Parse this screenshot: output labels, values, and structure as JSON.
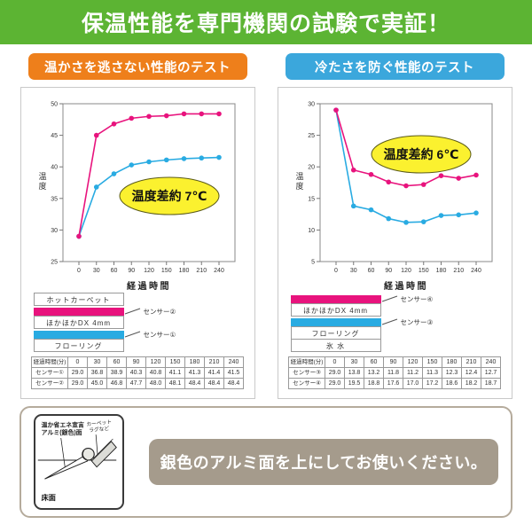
{
  "banner": {
    "title": "保温性能を専門機関の試験で実証！"
  },
  "colors": {
    "banner_green": "#5CB433",
    "warm_accent": "#EE7F1B",
    "cold_accent": "#3BA7DC",
    "line_pink": "#E8137D",
    "line_blue": "#29ABE2",
    "annotation_yellow": "#FBF12F",
    "message_gray": "#A59B8C"
  },
  "panels": [
    {
      "header": "温かさを逃さない性能のテスト",
      "legend": {
        "layers": [
          {
            "kind": "box",
            "text": "ホットカーペット"
          },
          {
            "kind": "bar",
            "color": "#E8137D",
            "sensor": "センサー②"
          },
          {
            "kind": "box",
            "text": "ほかほかDX 4mm"
          },
          {
            "kind": "bar",
            "color": "#29ABE2",
            "sensor": "センサー①"
          },
          {
            "kind": "box",
            "text": "フローリング"
          }
        ]
      },
      "table": {
        "header": [
          "経過時間(分)",
          "0",
          "30",
          "60",
          "90",
          "120",
          "150",
          "180",
          "210",
          "240"
        ],
        "rows": [
          [
            "センサー①",
            "29.0",
            "36.8",
            "38.9",
            "40.3",
            "40.8",
            "41.1",
            "41.3",
            "41.4",
            "41.5"
          ],
          [
            "センサー②",
            "29.0",
            "45.0",
            "46.8",
            "47.7",
            "48.0",
            "48.1",
            "48.4",
            "48.4",
            "48.4"
          ]
        ]
      }
    },
    {
      "header": "冷たさを防ぐ性能のテスト",
      "legend": {
        "layers": [
          {
            "kind": "bar",
            "color": "#E8137D",
            "sensor": "センサー④"
          },
          {
            "kind": "box",
            "text": "ほかほかDX 4mm"
          },
          {
            "kind": "bar",
            "color": "#29ABE2",
            "sensor": "センサー③"
          },
          {
            "kind": "box",
            "text": "フローリング"
          },
          {
            "kind": "box",
            "text": "氷 水"
          }
        ]
      },
      "table": {
        "header": [
          "経過時間(分)",
          "0",
          "30",
          "60",
          "90",
          "120",
          "150",
          "180",
          "210",
          "240"
        ],
        "rows": [
          [
            "センサー③",
            "29.0",
            "13.8",
            "13.2",
            "11.8",
            "11.2",
            "11.3",
            "12.3",
            "12.4",
            "12.7"
          ],
          [
            "センサー④",
            "29.0",
            "19.5",
            "18.8",
            "17.6",
            "17.0",
            "17.2",
            "18.6",
            "18.2",
            "18.7"
          ]
        ]
      }
    }
  ],
  "chart_data": [
    {
      "type": "line",
      "title": "温かさを逃さない性能のテスト",
      "x": [
        0,
        30,
        60,
        90,
        120,
        150,
        180,
        210,
        240
      ],
      "xlabel": "経過時間",
      "ylabel": "温度",
      "ylim": [
        25,
        50
      ],
      "yticks": [
        25,
        30,
        35,
        40,
        45,
        50
      ],
      "grid": false,
      "series": [
        {
          "name": "センサー②",
          "color": "#E8137D",
          "values": [
            29.0,
            45.0,
            46.8,
            47.7,
            48.0,
            48.1,
            48.4,
            48.4,
            48.4
          ]
        },
        {
          "name": "センサー①",
          "color": "#29ABE2",
          "values": [
            29.0,
            36.8,
            38.9,
            40.3,
            40.8,
            41.1,
            41.3,
            41.4,
            41.5
          ]
        }
      ],
      "annotation": "温度差約 7℃"
    },
    {
      "type": "line",
      "title": "冷たさを防ぐ性能のテスト",
      "x": [
        0,
        30,
        60,
        90,
        120,
        150,
        180,
        210,
        240
      ],
      "xlabel": "経過時間",
      "ylabel": "温度",
      "ylim": [
        5,
        30
      ],
      "yticks": [
        5,
        10,
        15,
        20,
        25,
        30
      ],
      "grid": false,
      "series": [
        {
          "name": "センサー④",
          "color": "#E8137D",
          "values": [
            29.0,
            19.5,
            18.8,
            17.6,
            17.0,
            17.2,
            18.6,
            18.2,
            18.7
          ]
        },
        {
          "name": "センサー③",
          "color": "#29ABE2",
          "values": [
            29.0,
            13.8,
            13.2,
            11.8,
            11.2,
            11.3,
            12.3,
            12.4,
            12.7
          ]
        }
      ],
      "annotation": "温度差約 6℃"
    }
  ],
  "footer": {
    "diagram": {
      "label_top1": "温か省エネ宣言",
      "label_top2": "アルミ(銀色)面",
      "label_right1": "カーペット",
      "label_right2": "ラグなど",
      "label_floor": "床面"
    },
    "message": "銀色のアルミ面を上にしてお使いください。"
  }
}
